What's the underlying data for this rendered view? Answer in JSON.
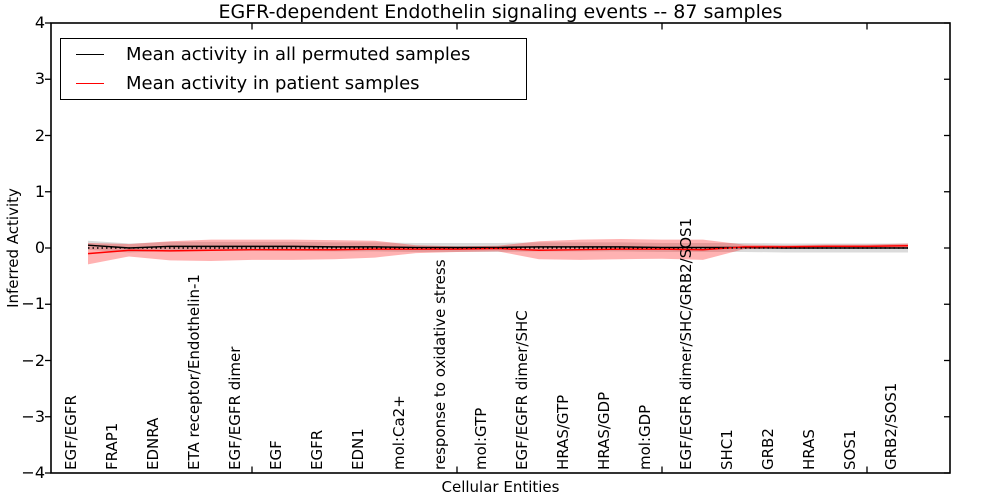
{
  "figure": {
    "title": "EGFR-dependent Endothelin signaling events -- 87 samples",
    "background": "#ffffff"
  },
  "legend": {
    "position": "upper left",
    "items": [
      {
        "label": "Mean activity in all permuted samples",
        "color": "#000000"
      },
      {
        "label": "Mean activity in patient samples",
        "color": "#ff0000"
      }
    ]
  },
  "chart_data": {
    "type": "line",
    "title": "EGFR-dependent Endothelin signaling events -- 87 samples",
    "xlabel": "Cellular Entities",
    "ylabel": "Inferred Activity",
    "ylim": [
      -4,
      4
    ],
    "yticks": [
      4,
      3,
      2,
      1,
      0,
      -1,
      -2,
      -3,
      -4
    ],
    "xtick_category_indexes": [
      4,
      9,
      14,
      19
    ],
    "grid": false,
    "legend_position": "upper left",
    "categories": [
      "EGF/EGFR",
      "FRAP1",
      "EDNRA",
      "ETA receptor/Endothelin-1",
      "EGF/EGFR dimer",
      "EGF",
      "EGFR",
      "EDN1",
      "mol:Ca2+",
      "response to oxidative stress",
      "mol:GTP",
      "EGF/EGFR dimer/SHC",
      "HRAS/GTP",
      "HRAS/GDP",
      "mol:GDP",
      "EGF/EGFR dimer/SHC/GRB2/SOS1",
      "SHC1",
      "GRB2",
      "HRAS",
      "SOS1",
      "GRB2/SOS1"
    ],
    "series": [
      {
        "name": "Mean activity in all permuted samples",
        "color": "#000000",
        "style": "solid",
        "values": [
          0.05,
          0.0,
          0.03,
          0.03,
          0.03,
          0.03,
          0.02,
          0.02,
          0.01,
          0.01,
          0.01,
          0.02,
          0.02,
          0.02,
          0.01,
          0.01,
          0.01,
          0.0,
          0.0,
          0.0,
          0.0
        ]
      },
      {
        "name": "Mean activity in patient samples",
        "color": "#ff0000",
        "style": "solid",
        "values": [
          -0.1,
          -0.04,
          -0.05,
          -0.04,
          -0.03,
          -0.03,
          -0.03,
          -0.02,
          -0.02,
          -0.02,
          -0.01,
          -0.04,
          -0.03,
          -0.02,
          -0.02,
          -0.03,
          0.02,
          0.02,
          0.03,
          0.03,
          0.04
        ]
      }
    ],
    "bands": [
      {
        "name": "permuted-samples-band",
        "color": "#999999",
        "opacity": 0.35,
        "center_series": 0,
        "halfwidths": [
          0.08,
          0.08,
          0.08,
          0.08,
          0.08,
          0.08,
          0.08,
          0.08,
          0.08,
          0.08,
          0.08,
          0.08,
          0.08,
          0.08,
          0.08,
          0.08,
          0.08,
          0.08,
          0.08,
          0.08,
          0.08
        ]
      },
      {
        "name": "patient-samples-band",
        "color": "#ff0000",
        "opacity": 0.3,
        "center_series": 1,
        "halfwidths": [
          0.19,
          0.11,
          0.17,
          0.19,
          0.18,
          0.18,
          0.17,
          0.15,
          0.07,
          0.05,
          0.05,
          0.16,
          0.18,
          0.18,
          0.17,
          0.18,
          0.04,
          0.03,
          0.03,
          0.03,
          0.04
        ]
      }
    ],
    "zero_line": {
      "value": 0,
      "style": "dotted",
      "color": "#000000"
    }
  }
}
